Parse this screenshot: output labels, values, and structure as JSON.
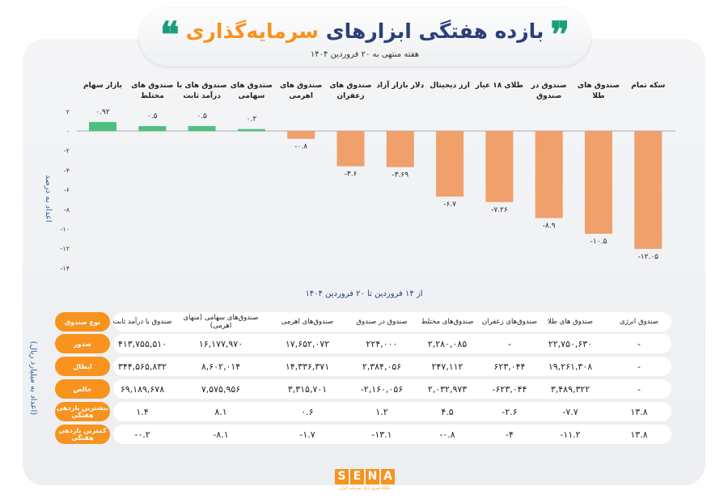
{
  "header": {
    "title_part1": "بازده هفتگی ابزارهای",
    "title_part2": "سرمایه‌گذاری",
    "subtitle": "هفته منتهی به ۲۰ فروردین ۱۴۰۴"
  },
  "chart_data": {
    "type": "bar",
    "categories": [
      "بازار سهام",
      "صندوق های مختلط",
      "صندوق های با درآمد ثابت",
      "صندوق های سهامی",
      "صندوق های اهرمی",
      "صندوق های زعفران",
      "دلار بازار آزاد",
      "ارز دیجیتال",
      "طلای ۱۸ عیار",
      "صندوق در صندوق",
      "صندوق های طلا",
      "سکه تمام"
    ],
    "values": [
      0.92,
      0.5,
      0.5,
      0.2,
      -0.8,
      -3.6,
      -3.69,
      -6.7,
      -7.26,
      -8.9,
      -10.5,
      -12.05
    ],
    "value_labels": [
      "۰.۹۲",
      "۰.۵",
      "۰.۵",
      "۰.۲",
      "-۰.۸",
      "-۳.۶",
      "-۳.۶۹",
      "-۶.۷",
      "-۷.۲۶",
      "-۸.۹",
      "-۱۰.۵",
      "-۱۲.۰۵"
    ],
    "ylim": [
      -14,
      2
    ],
    "yticks": [
      2,
      0,
      -2,
      -4,
      -6,
      -8,
      -10,
      -12,
      -14
    ],
    "ytick_labels": [
      "۲",
      "۰",
      "-۲",
      "-۴",
      "-۶",
      "-۸",
      "-۱۰",
      "-۱۲",
      "-۱۴"
    ],
    "ylabel": "اعداد به درصد",
    "xlabel": "از ۱۴ فروردین تا ۲۰ فروردین ۱۴۰۴",
    "colors": {
      "positive": "#4cc17f",
      "negative": "#f0a06b"
    },
    "grid": false
  },
  "table": {
    "unit": "(اعداد به میلیارد ریال)",
    "row_labels": [
      "نوع صندوق",
      "صدور",
      "ابطال",
      "خالص",
      "بیشترین بازدهی هفتگی",
      "کمترین بازدهی هفتگی"
    ],
    "columns": [
      {
        "header": "صندوق با درآمد ثابت",
        "values": [
          "۴۱۳,۷۵۵,۵۱۰",
          "۳۴۴,۵۶۵,۸۳۲",
          "۶۹,۱۸۹,۶۷۸",
          "۱.۴",
          "-۰.۲"
        ]
      },
      {
        "header": "صندوق‌های سهامی (منهای اهرمی)",
        "values": [
          "۱۶,۱۷۷,۹۷۰",
          "۸,۶۰۲,۰۱۴",
          "۷,۵۷۵,۹۵۶",
          "۸.۱",
          "-۸.۱"
        ]
      },
      {
        "header": "صندوق‌های اهرمی",
        "values": [
          "۱۷,۶۵۲,۰۷۲",
          "۱۴,۳۳۶,۳۷۱",
          "۳,۳۱۵,۷۰۱",
          "۰.۶",
          "-۱.۷"
        ]
      },
      {
        "header": "صندوق در صندوق",
        "values": [
          "۲۲۴,۰۰۰",
          "۲,۳۸۴,۰۵۶",
          "-۲,۱۶۰,۰۵۶",
          "۱.۲",
          "-۱۳.۱"
        ]
      },
      {
        "header": "صندوق‌های مختلط",
        "values": [
          "۲,۲۸۰,۰۸۵",
          "۲۴۷,۱۱۲",
          "۲,۰۳۲,۹۷۳",
          "۴.۵",
          "-۰.۸"
        ]
      },
      {
        "header": "صندوق‌های زعفران",
        "values": [
          "-",
          "۶۲۳,۰۴۴",
          "-۶۲۳,۰۴۴",
          "-۲.۶",
          "-۴"
        ]
      },
      {
        "header": "صندوق های طلا",
        "values": [
          "۲۲,۷۵۰,۶۳۰",
          "۱۹,۲۶۱,۳۰۸",
          "۳,۴۸۹,۳۲۲",
          "-۷.۷",
          "-۱۱.۲"
        ]
      },
      {
        "header": "صندوق انرژی",
        "values": [
          "-",
          "-",
          "-",
          "۱۳.۸",
          "۱۳.۸"
        ]
      }
    ]
  },
  "footer": {
    "logo": "SENA",
    "tagline": "پایگاه خبری بازار سرمایه ایران"
  }
}
